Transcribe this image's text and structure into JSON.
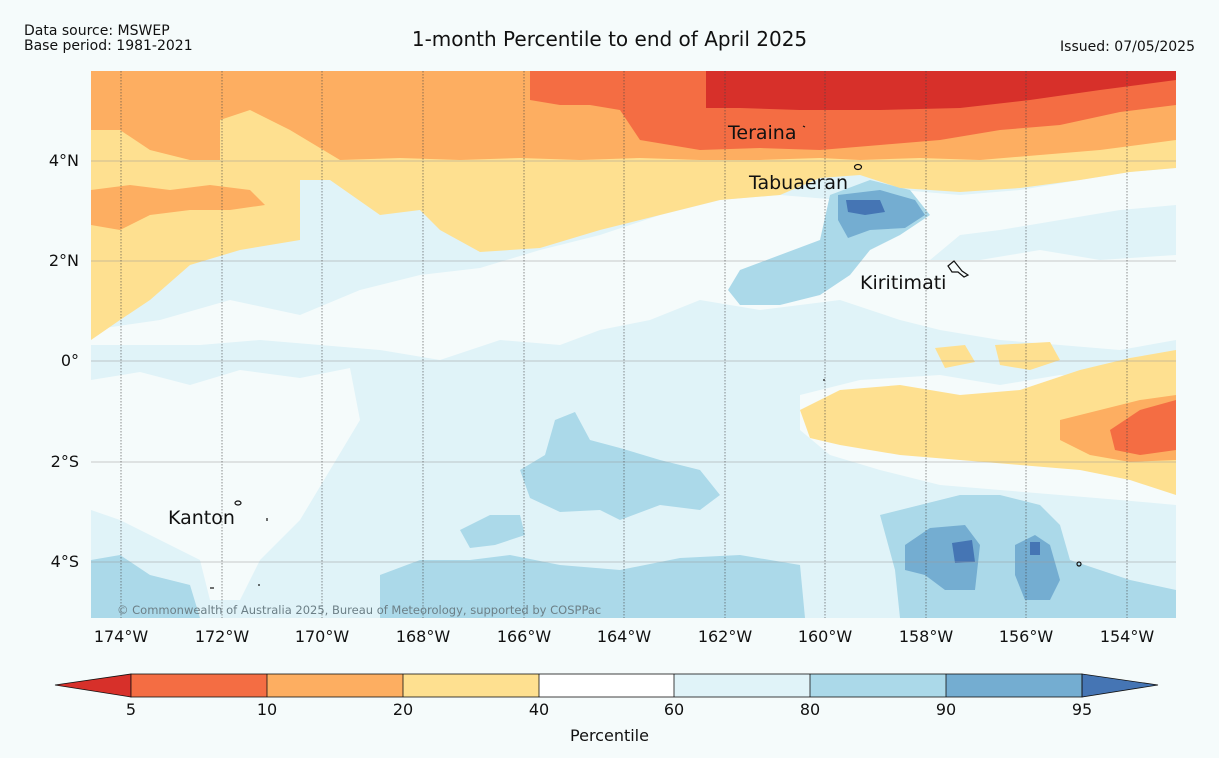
{
  "header": {
    "data_source": "Data source: MSWEP",
    "base_period": "Base period: 1981-2021",
    "title": "1-month Percentile to end of April 2025",
    "issued": "Issued: 07/05/2025"
  },
  "map": {
    "lat_labels": [
      "4°N",
      "2°N",
      "0°",
      "2°S",
      "4°S"
    ],
    "lon_labels": [
      "174°W",
      "172°W",
      "170°W",
      "168°W",
      "166°W",
      "164°W",
      "162°W",
      "160°W",
      "158°W",
      "156°W",
      "154°W"
    ],
    "places": [
      {
        "name": "Teraina"
      },
      {
        "name": "Tabuaeran"
      },
      {
        "name": "Kiritimati"
      },
      {
        "name": "Kanton"
      }
    ],
    "copyright": "© Commonwealth of Australia 2025, Bureau of Meteorology, supported by COSPPac"
  },
  "colorbar": {
    "label": "Percentile",
    "ticks": [
      "5",
      "10",
      "20",
      "40",
      "60",
      "80",
      "90",
      "95"
    ],
    "colors": {
      "below_5": "#d7302a",
      "p5_10": "#f46d43",
      "p10_20": "#fdae61",
      "p20_40": "#fee090",
      "p40_60": "#ffffff",
      "p60_80": "#e0f3f8",
      "p80_90": "#abd9e9",
      "p90_95": "#74add1",
      "above_95": "#4575b4"
    }
  }
}
